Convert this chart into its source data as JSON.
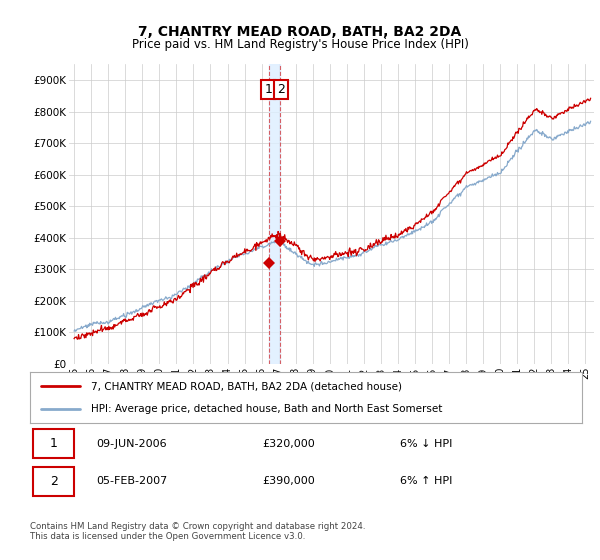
{
  "title": "7, CHANTRY MEAD ROAD, BATH, BA2 2DA",
  "subtitle": "Price paid vs. HM Land Registry's House Price Index (HPI)",
  "ylabel_ticks": [
    "£0",
    "£100K",
    "£200K",
    "£300K",
    "£400K",
    "£500K",
    "£600K",
    "£700K",
    "£800K",
    "£900K"
  ],
  "ytick_values": [
    0,
    100000,
    200000,
    300000,
    400000,
    500000,
    600000,
    700000,
    800000,
    900000
  ],
  "ylim": [
    0,
    950000
  ],
  "xlim_start": 1994.7,
  "xlim_end": 2025.5,
  "xtick_labels": [
    "95",
    "96",
    "97",
    "98",
    "99",
    "00",
    "01",
    "02",
    "03",
    "04",
    "05",
    "06",
    "07",
    "08",
    "09",
    "10",
    "11",
    "12",
    "13",
    "14",
    "15",
    "16",
    "17",
    "18",
    "19",
    "20",
    "21",
    "22",
    "23",
    "24",
    "25"
  ],
  "xtick_positions": [
    1995,
    1996,
    1997,
    1998,
    1999,
    2000,
    2001,
    2002,
    2003,
    2004,
    2005,
    2006,
    2007,
    2008,
    2009,
    2010,
    2011,
    2012,
    2013,
    2014,
    2015,
    2016,
    2017,
    2018,
    2019,
    2020,
    2021,
    2022,
    2023,
    2024,
    2025
  ],
  "purchase1_date": 2006.44,
  "purchase1_price": 320000,
  "purchase2_date": 2007.09,
  "purchase2_price": 390000,
  "vline1_x": 2006.44,
  "vline2_x": 2007.09,
  "legend_line1": "7, CHANTRY MEAD ROAD, BATH, BA2 2DA (detached house)",
  "legend_line2": "HPI: Average price, detached house, Bath and North East Somerset",
  "table_row1_date": "09-JUN-2006",
  "table_row1_price": "£320,000",
  "table_row1_hpi": "6% ↓ HPI",
  "table_row2_date": "05-FEB-2007",
  "table_row2_price": "£390,000",
  "table_row2_hpi": "6% ↑ HPI",
  "footer": "Contains HM Land Registry data © Crown copyright and database right 2024.\nThis data is licensed under the Open Government Licence v3.0.",
  "red_color": "#cc0000",
  "blue_color": "#88aacc",
  "shade_color": "#ddeeff",
  "background_color": "#ffffff",
  "grid_color": "#cccccc"
}
